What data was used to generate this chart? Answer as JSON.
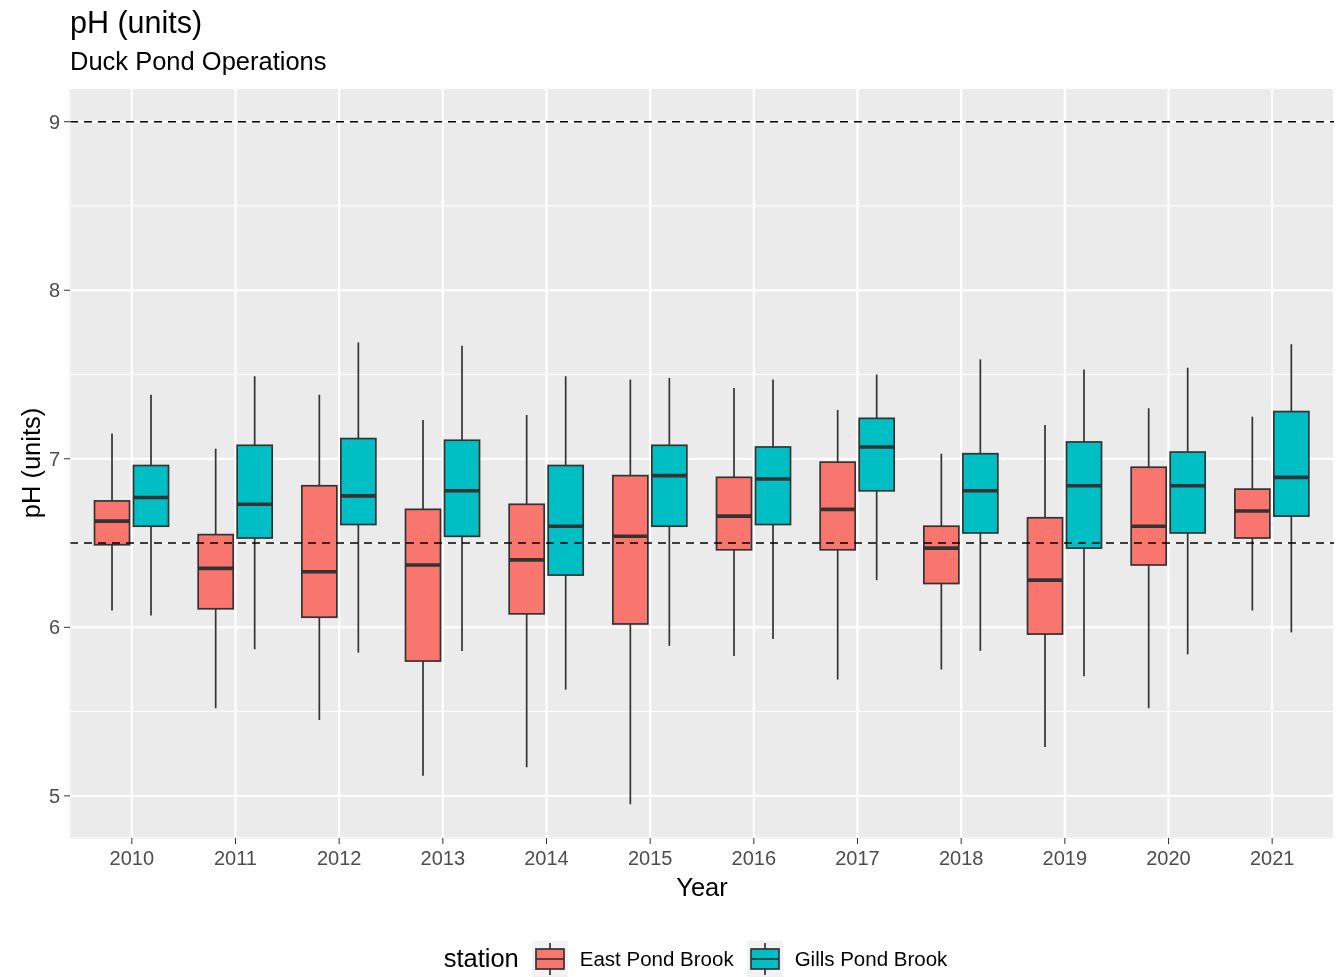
{
  "chart_data": {
    "type": "box",
    "title": "pH (units)",
    "subtitle": "Duck Pond Operations",
    "xlabel": "Year",
    "ylabel": "pH (units)",
    "legend_title": "station",
    "categories": [
      "2010",
      "2011",
      "2012",
      "2013",
      "2014",
      "2015",
      "2016",
      "2017",
      "2018",
      "2019",
      "2020",
      "2021"
    ],
    "series": [
      {
        "name": "East Pond Brook",
        "color": "#f8766d",
        "boxes": [
          {
            "low": 6.1,
            "q1": 6.49,
            "median": 6.63,
            "q3": 6.75,
            "high": 7.15
          },
          {
            "low": 5.52,
            "q1": 6.11,
            "median": 6.35,
            "q3": 6.55,
            "high": 7.06
          },
          {
            "low": 5.45,
            "q1": 6.06,
            "median": 6.33,
            "q3": 6.84,
            "high": 7.38
          },
          {
            "low": 5.12,
            "q1": 5.8,
            "median": 6.37,
            "q3": 6.7,
            "high": 7.23
          },
          {
            "low": 5.17,
            "q1": 6.08,
            "median": 6.4,
            "q3": 6.73,
            "high": 7.26
          },
          {
            "low": 4.95,
            "q1": 6.02,
            "median": 6.54,
            "q3": 6.9,
            "high": 7.47
          },
          {
            "low": 5.83,
            "q1": 6.46,
            "median": 6.66,
            "q3": 6.89,
            "high": 7.42
          },
          {
            "low": 5.69,
            "q1": 6.46,
            "median": 6.7,
            "q3": 6.98,
            "high": 7.29
          },
          {
            "low": 5.75,
            "q1": 6.26,
            "median": 6.47,
            "q3": 6.6,
            "high": 7.03
          },
          {
            "low": 5.29,
            "q1": 5.96,
            "median": 6.28,
            "q3": 6.65,
            "high": 7.2
          },
          {
            "low": 5.52,
            "q1": 6.37,
            "median": 6.6,
            "q3": 6.95,
            "high": 7.3
          },
          {
            "low": 6.1,
            "q1": 6.53,
            "median": 6.69,
            "q3": 6.82,
            "high": 7.25
          }
        ]
      },
      {
        "name": "Gills Pond Brook",
        "color": "#00bfc4",
        "boxes": [
          {
            "low": 6.07,
            "q1": 6.6,
            "median": 6.77,
            "q3": 6.96,
            "high": 7.38
          },
          {
            "low": 5.87,
            "q1": 6.53,
            "median": 6.73,
            "q3": 7.08,
            "high": 7.49
          },
          {
            "low": 5.85,
            "q1": 6.61,
            "median": 6.78,
            "q3": 7.12,
            "high": 7.69
          },
          {
            "low": 5.86,
            "q1": 6.54,
            "median": 6.81,
            "q3": 7.11,
            "high": 7.67
          },
          {
            "low": 5.63,
            "q1": 6.31,
            "median": 6.6,
            "q3": 6.96,
            "high": 7.49
          },
          {
            "low": 5.89,
            "q1": 6.6,
            "median": 6.9,
            "q3": 7.08,
            "high": 7.48
          },
          {
            "low": 5.93,
            "q1": 6.61,
            "median": 6.88,
            "q3": 7.07,
            "high": 7.47
          },
          {
            "low": 6.28,
            "q1": 6.81,
            "median": 7.07,
            "q3": 7.24,
            "high": 7.5
          },
          {
            "low": 5.86,
            "q1": 6.56,
            "median": 6.81,
            "q3": 7.03,
            "high": 7.59
          },
          {
            "low": 5.71,
            "q1": 6.47,
            "median": 6.84,
            "q3": 7.1,
            "high": 7.53
          },
          {
            "low": 5.84,
            "q1": 6.56,
            "median": 6.84,
            "q3": 7.04,
            "high": 7.54
          },
          {
            "low": 5.97,
            "q1": 6.66,
            "median": 6.89,
            "q3": 7.28,
            "high": 7.68
          }
        ]
      }
    ],
    "ylim": [
      4.75,
      9.2
    ],
    "yticks": [
      5,
      6,
      7,
      8,
      9
    ],
    "grid": true,
    "legend": "bottom",
    "ref_lines": [
      {
        "axis": "y",
        "value": 9,
        "color": "#000000",
        "line_style": "dashed"
      },
      {
        "axis": "y",
        "value": 6.5,
        "color": "#000000",
        "line_style": "dashed"
      }
    ]
  }
}
